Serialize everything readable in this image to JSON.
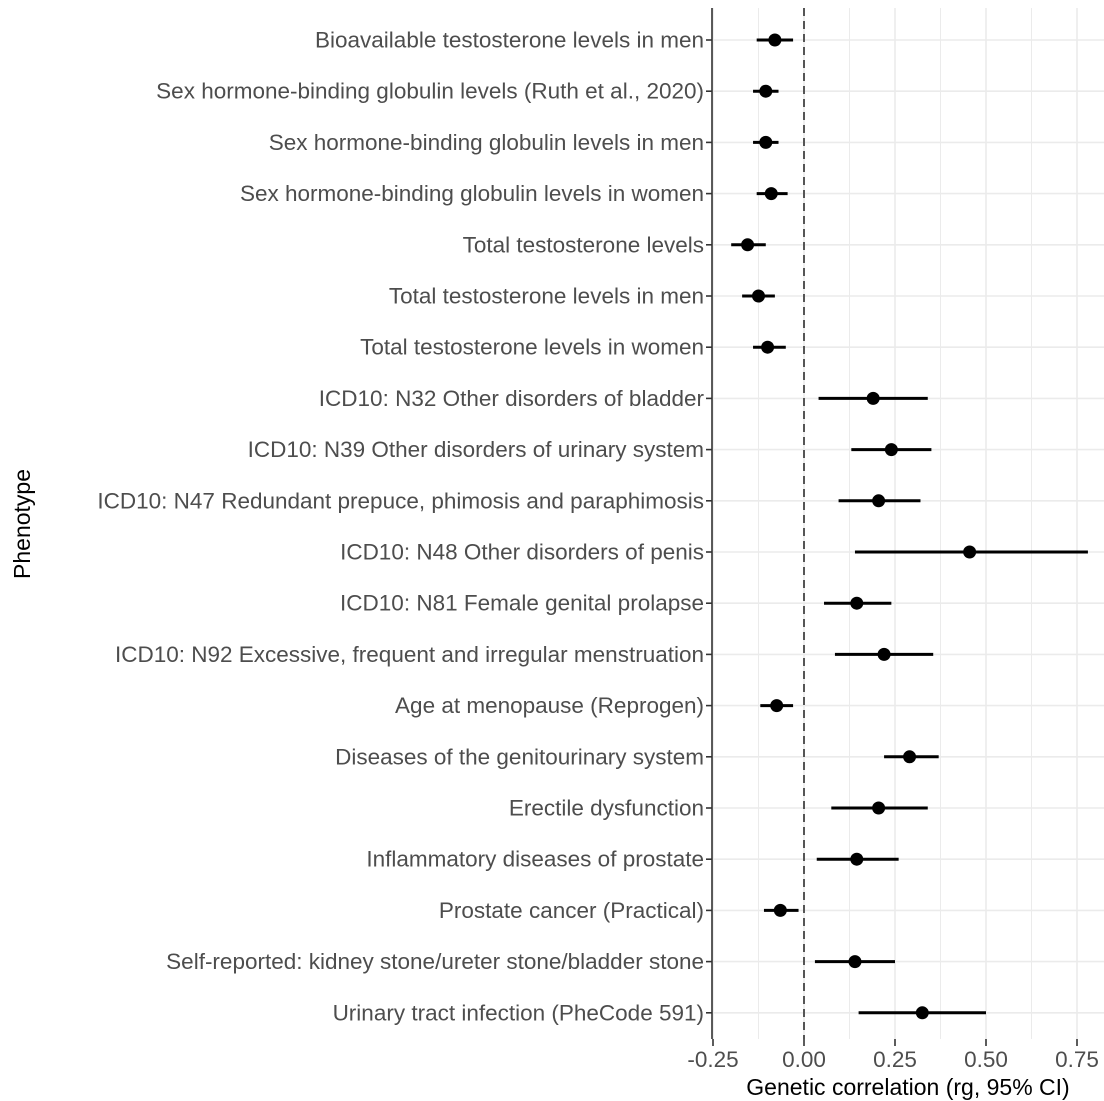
{
  "chart_data": {
    "type": "forest",
    "title": "",
    "xlabel": "Genetic correlation (rg, 95% CI)",
    "ylabel": "Phenotype",
    "xlim": [
      -0.25,
      0.82
    ],
    "x_ticks": [
      -0.25,
      0,
      0.25,
      0.5,
      0.75
    ],
    "x_tick_labels": [
      "-0.25",
      "0.00",
      "0.25",
      "0.50",
      "0.75"
    ],
    "reference_line": 0,
    "grid": true,
    "legend": "none",
    "colors": {
      "point": "#000000",
      "grid": "#ebebeb",
      "axis": "#333333",
      "reference": "#555555"
    },
    "rows": [
      {
        "label": "Bioavailable testosterone levels in men",
        "rg": -0.08,
        "lower": -0.13,
        "upper": -0.03
      },
      {
        "label": "Sex hormone-binding globulin levels (Ruth et al., 2020)",
        "rg": -0.105,
        "lower": -0.14,
        "upper": -0.07
      },
      {
        "label": "Sex hormone-binding globulin levels in men",
        "rg": -0.105,
        "lower": -0.14,
        "upper": -0.07
      },
      {
        "label": "Sex hormone-binding globulin levels in women",
        "rg": -0.09,
        "lower": -0.13,
        "upper": -0.045
      },
      {
        "label": "Total testosterone levels",
        "rg": -0.155,
        "lower": -0.2,
        "upper": -0.105
      },
      {
        "label": "Total testosterone levels in men",
        "rg": -0.125,
        "lower": -0.17,
        "upper": -0.08
      },
      {
        "label": "Total testosterone levels in women",
        "rg": -0.1,
        "lower": -0.14,
        "upper": -0.05
      },
      {
        "label": "ICD10: N32 Other disorders of bladder",
        "rg": 0.19,
        "lower": 0.04,
        "upper": 0.34
      },
      {
        "label": "ICD10: N39 Other disorders of urinary system",
        "rg": 0.24,
        "lower": 0.13,
        "upper": 0.35
      },
      {
        "label": "ICD10: N47 Redundant prepuce, phimosis and paraphimosis",
        "rg": 0.205,
        "lower": 0.095,
        "upper": 0.32
      },
      {
        "label": "ICD10: N48 Other disorders of penis",
        "rg": 0.455,
        "lower": 0.14,
        "upper": 0.78
      },
      {
        "label": "ICD10: N81 Female genital prolapse",
        "rg": 0.145,
        "lower": 0.055,
        "upper": 0.24
      },
      {
        "label": "ICD10: N92 Excessive, frequent and irregular menstruation",
        "rg": 0.22,
        "lower": 0.085,
        "upper": 0.355
      },
      {
        "label": "Age at menopause (Reprogen)",
        "rg": -0.075,
        "lower": -0.12,
        "upper": -0.03
      },
      {
        "label": "Diseases of the genitourinary system",
        "rg": 0.29,
        "lower": 0.22,
        "upper": 0.37
      },
      {
        "label": "Erectile dysfunction",
        "rg": 0.205,
        "lower": 0.075,
        "upper": 0.34
      },
      {
        "label": "Inflammatory diseases of prostate",
        "rg": 0.145,
        "lower": 0.035,
        "upper": 0.26
      },
      {
        "label": "Prostate cancer (Practical)",
        "rg": -0.065,
        "lower": -0.11,
        "upper": -0.015
      },
      {
        "label": "Self-reported: kidney stone/ureter stone/bladder stone",
        "rg": 0.14,
        "lower": 0.03,
        "upper": 0.25
      },
      {
        "label": "Urinary tract infection (PheCode 591)",
        "rg": 0.325,
        "lower": 0.15,
        "upper": 0.5
      }
    ]
  }
}
